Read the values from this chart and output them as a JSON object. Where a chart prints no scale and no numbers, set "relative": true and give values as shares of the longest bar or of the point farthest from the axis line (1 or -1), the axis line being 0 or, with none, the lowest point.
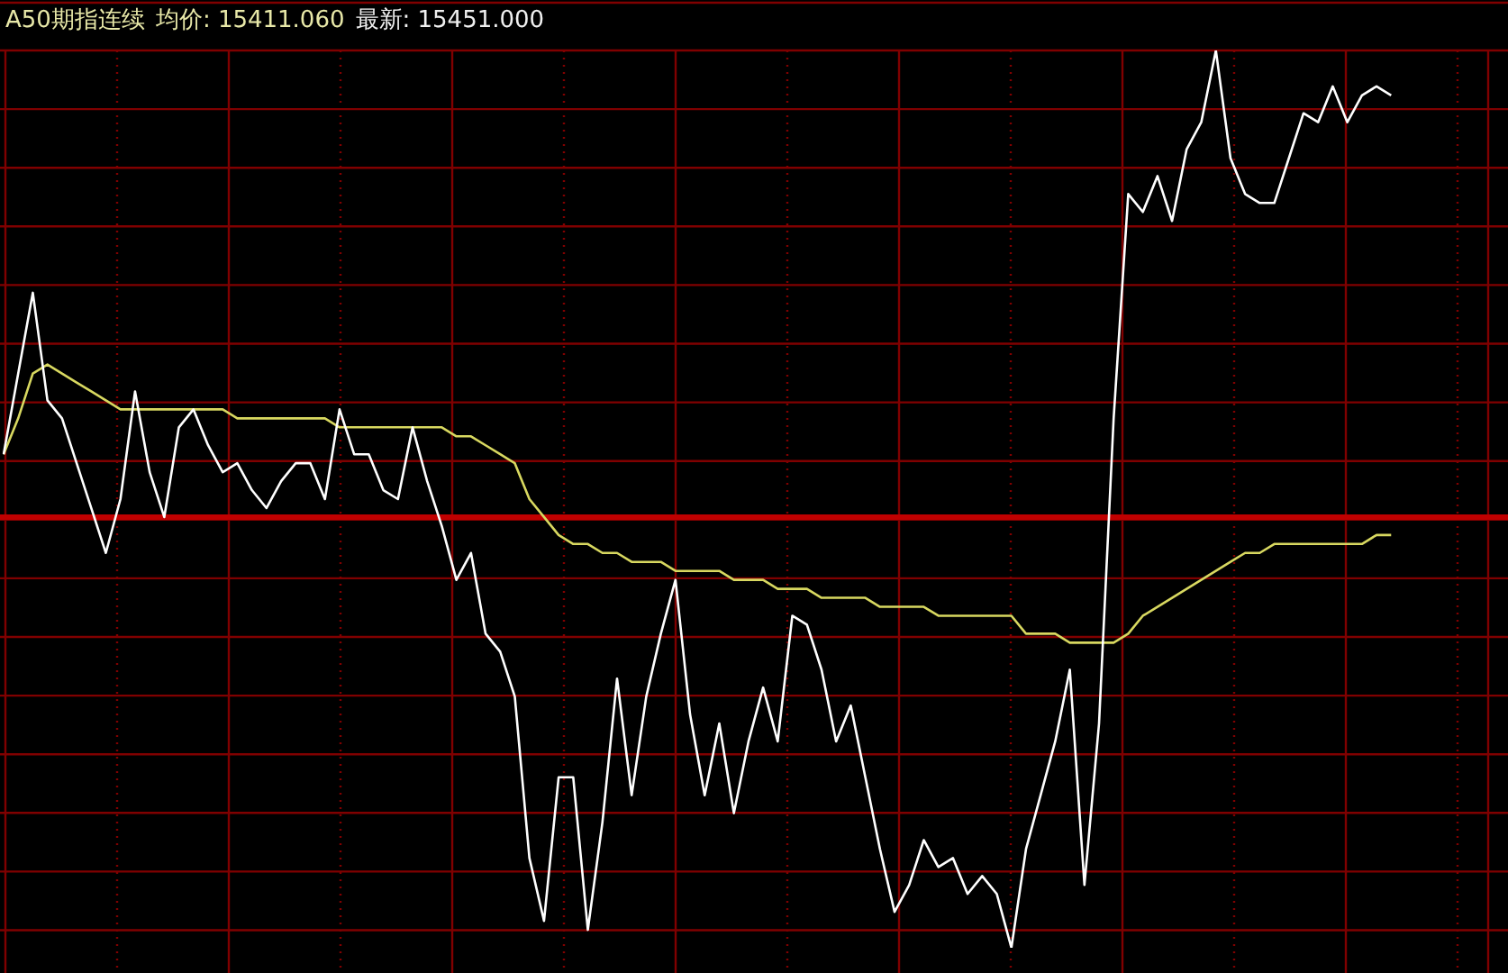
{
  "chart_data": {
    "type": "line",
    "title": "A50期指连续",
    "annotations": [
      "均价: 15411.060",
      "最新: 15451.000"
    ],
    "relative": true,
    "grid": true,
    "tick_labels": false,
    "categories": [
      null,
      null,
      null,
      null,
      null,
      null,
      null,
      null,
      null,
      null,
      null,
      null,
      null,
      null,
      null,
      null,
      null,
      null,
      null,
      null,
      null,
      null,
      null,
      null,
      null,
      null,
      null,
      null,
      null,
      null,
      null,
      null,
      null,
      null,
      null,
      null,
      null,
      null,
      null,
      null,
      null,
      null,
      null,
      null,
      null,
      null,
      null,
      null,
      null,
      null,
      null,
      null,
      null,
      null,
      null,
      null,
      null,
      null,
      null,
      null,
      null,
      null,
      null,
      null,
      null,
      null,
      null,
      null,
      null,
      null,
      null,
      null,
      null,
      null,
      null,
      null,
      null,
      null,
      null,
      null,
      null,
      null,
      null,
      null,
      null,
      null,
      null,
      null,
      null,
      null,
      null,
      null,
      null,
      null,
      null,
      null,
      null,
      null,
      null,
      null,
      null,
      null,
      null,
      null
    ],
    "series": [
      {
        "color": "#ffffff",
        "values": [
          0.55,
          0.64,
          0.73,
          0.61,
          0.59,
          0.54,
          0.49,
          0.44,
          0.5,
          0.62,
          0.53,
          0.48,
          0.58,
          0.6,
          0.56,
          0.53,
          0.54,
          0.51,
          0.49,
          0.52,
          0.54,
          0.54,
          0.5,
          0.6,
          0.55,
          0.55,
          0.51,
          0.5,
          0.58,
          0.52,
          0.47,
          0.41,
          0.44,
          0.35,
          0.33,
          0.28,
          0.1,
          0.03,
          0.19,
          0.19,
          0.02,
          0.14,
          0.3,
          0.17,
          0.28,
          0.35,
          0.41,
          0.26,
          0.17,
          0.25,
          0.15,
          0.23,
          0.29,
          0.23,
          0.37,
          0.36,
          0.31,
          0.23,
          0.27,
          0.19,
          0.11,
          0.04,
          0.07,
          0.12,
          0.09,
          0.1,
          0.06,
          0.08,
          0.06,
          0,
          0.11,
          0.17,
          0.23,
          0.31,
          0.07,
          0.25,
          0.59,
          0.84,
          0.82,
          0.86,
          0.81,
          0.89,
          0.92,
          1,
          0.88,
          0.84,
          0.83,
          0.83,
          0.88,
          0.93,
          0.92,
          0.96,
          0.92,
          0.95,
          0.96,
          0.95,
          null,
          null,
          null,
          null,
          null,
          null,
          null,
          null
        ]
      },
      {
        "color": "#d8d860",
        "values": [
          0.55,
          0.59,
          0.64,
          0.65,
          0.64,
          0.63,
          0.62,
          0.61,
          0.6,
          0.6,
          0.6,
          0.6,
          0.6,
          0.6,
          0.6,
          0.6,
          0.59,
          0.59,
          0.59,
          0.59,
          0.59,
          0.59,
          0.59,
          0.58,
          0.58,
          0.58,
          0.58,
          0.58,
          0.58,
          0.58,
          0.58,
          0.57,
          0.57,
          0.56,
          0.55,
          0.54,
          0.5,
          0.48,
          0.46,
          0.45,
          0.45,
          0.44,
          0.44,
          0.43,
          0.43,
          0.43,
          0.42,
          0.42,
          0.42,
          0.42,
          0.41,
          0.41,
          0.41,
          0.4,
          0.4,
          0.4,
          0.39,
          0.39,
          0.39,
          0.39,
          0.38,
          0.38,
          0.38,
          0.38,
          0.37,
          0.37,
          0.37,
          0.37,
          0.37,
          0.37,
          0.35,
          0.35,
          0.35,
          0.34,
          0.34,
          0.34,
          0.34,
          0.35,
          0.37,
          0.38,
          0.39,
          0.4,
          0.41,
          0.42,
          0.43,
          0.44,
          0.44,
          0.45,
          0.45,
          0.45,
          0.45,
          0.45,
          0.45,
          0.45,
          0.46,
          0.46,
          null,
          null,
          null,
          null,
          null,
          null,
          null,
          null
        ]
      }
    ],
    "ref_lines": [
      {
        "axis": "y",
        "value": 0.48,
        "color": "#c00000"
      }
    ]
  }
}
